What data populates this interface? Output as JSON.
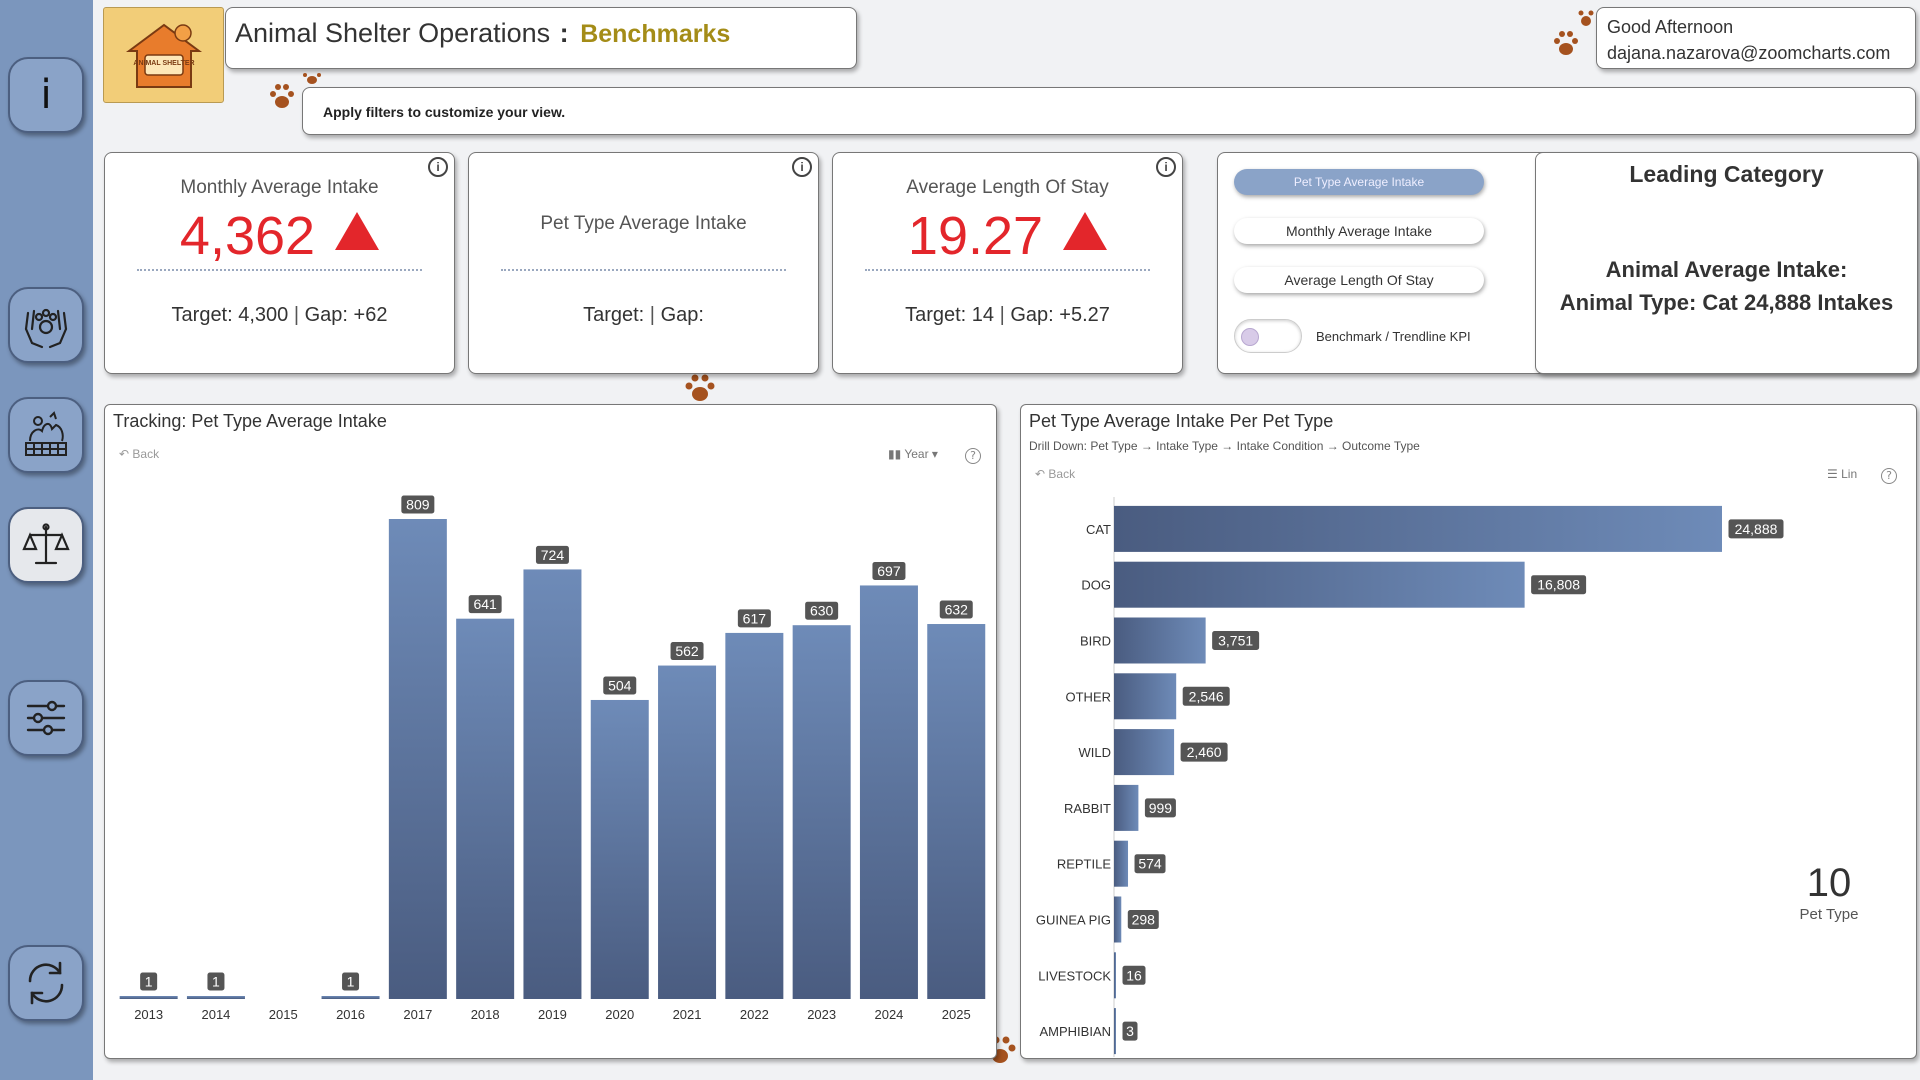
{
  "header": {
    "title": "Animal Shelter Operations",
    "separator": ":",
    "subtitle": "Benchmarks",
    "logo_text": "ANIMAL SHELTER",
    "filter_hint": "Apply filters to customize your view.",
    "greeting": "Good Afternoon",
    "email": "dajana.nazarova@zoomcharts.com"
  },
  "sidebar": {
    "items": [
      {
        "name": "info",
        "icon": "info-icon",
        "label": "i"
      },
      {
        "name": "care",
        "icon": "hands-paw-icon"
      },
      {
        "name": "shelter",
        "icon": "shelter-animals-icon"
      },
      {
        "name": "benchmarks",
        "icon": "scales-icon",
        "active": true
      },
      {
        "name": "filters",
        "icon": "sliders-icon"
      },
      {
        "name": "refresh",
        "icon": "refresh-icon"
      }
    ]
  },
  "kpis": [
    {
      "label": "Monthly Average Intake",
      "value": "4,362",
      "trend": "up",
      "target_text": "Target: 4,300",
      "gap_text": "Gap: +62"
    },
    {
      "label": "Pet Type Average Intake",
      "value": "",
      "trend": "",
      "target_text": "Target:",
      "gap_text": "Gap:"
    },
    {
      "label": "Average Length Of Stay",
      "value": "19.27",
      "trend": "up",
      "target_text": "Target: 14",
      "gap_text": "Gap: +5.27"
    }
  ],
  "kpi_info_glyph": "i",
  "toggles": {
    "options": [
      "Pet Type Average Intake",
      "Monthly Average Intake",
      "Average Length Of Stay"
    ],
    "selected": 0,
    "switch_label": "Benchmark / Trendline KPI"
  },
  "leading": {
    "title": "Leading Category",
    "line1": "Animal Average Intake:",
    "line2": "Animal Type: Cat 24,888 Intakes"
  },
  "tracking": {
    "title": "Tracking: Pet Type Average Intake",
    "back_label": "Back",
    "period_label": "Year",
    "help_glyph": "?"
  },
  "per_type": {
    "title": "Pet Type Average Intake Per Pet Type",
    "drill": "Drill Down: Pet Type → Intake Type → Intake Condition → Outcome Type",
    "back_label": "Back",
    "scale_label": "Lin",
    "help_glyph": "?",
    "count_value": "10",
    "count_label": "Pet Type"
  },
  "colors": {
    "bar_top": "#6e8bb8",
    "bar_bottom": "#4a5c80",
    "kpi_red": "#e3262b",
    "sidebar": "#7b96bd"
  },
  "chart_data": [
    {
      "type": "bar",
      "title": "Tracking: Pet Type Average Intake",
      "categories": [
        "2013",
        "2014",
        "2015",
        "2016",
        "2017",
        "2018",
        "2019",
        "2020",
        "2021",
        "2022",
        "2023",
        "2024",
        "2025"
      ],
      "values": [
        1,
        1,
        null,
        1,
        809,
        641,
        724,
        504,
        562,
        617,
        630,
        697,
        632
      ],
      "data_labels": [
        "1",
        "1",
        "",
        "1",
        "809",
        "641",
        "724",
        "504",
        "562",
        "617",
        "630",
        "697",
        "632"
      ],
      "ylim": [
        0,
        809
      ]
    },
    {
      "type": "bar",
      "orientation": "horizontal",
      "title": "Pet Type Average Intake Per Pet Type",
      "categories": [
        "CAT",
        "DOG",
        "BIRD",
        "OTHER",
        "WILD",
        "RABBIT",
        "REPTILE",
        "GUINEA PIG",
        "LIVESTOCK",
        "AMPHIBIAN"
      ],
      "values": [
        24888,
        16808,
        3751,
        2546,
        2460,
        999,
        574,
        298,
        16,
        3
      ],
      "data_labels": [
        "24,888",
        "16,808",
        "3,751",
        "2,546",
        "2,460",
        "999",
        "574",
        "298",
        "16",
        "3"
      ],
      "xlim": [
        0,
        24888
      ]
    }
  ]
}
